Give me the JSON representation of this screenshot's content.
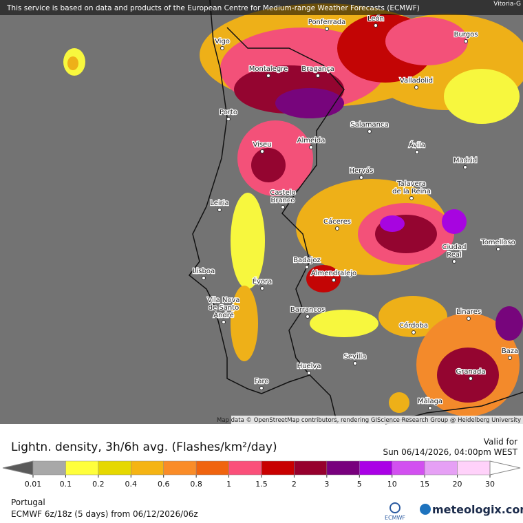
{
  "header": {
    "notice": "This service is based on data and products of the European Centre for Medium-range Weather Forecasts (ECMWF)",
    "corner": "Vitoria-G"
  },
  "map": {
    "attribution": "Map data © OpenStreetMap contributors, rendering GIScience Research Group @ Heidelberg University",
    "cities": [
      {
        "lines": [
          "Ponferrada"
        ]
      },
      {
        "lines": [
          "León"
        ]
      },
      {
        "lines": [
          "Vigo"
        ]
      },
      {
        "lines": [
          "Burgos"
        ]
      },
      {
        "lines": [
          "Montalegre"
        ]
      },
      {
        "lines": [
          "Bragança"
        ]
      },
      {
        "lines": [
          "Valladolid"
        ]
      },
      {
        "lines": [
          "Porto"
        ]
      },
      {
        "lines": [
          "Salamanca"
        ]
      },
      {
        "lines": [
          "Viseu"
        ]
      },
      {
        "lines": [
          "Almeida"
        ]
      },
      {
        "lines": [
          "Ávila"
        ]
      },
      {
        "lines": [
          "Madrid"
        ]
      },
      {
        "lines": [
          "Hervás"
        ]
      },
      {
        "lines": [
          "Talavera",
          "de la Reina"
        ]
      },
      {
        "lines": [
          "Castelo",
          "Branco"
        ]
      },
      {
        "lines": [
          "Leiria"
        ]
      },
      {
        "lines": [
          "Cáceres"
        ]
      },
      {
        "lines": [
          "Ciudad",
          "Real"
        ]
      },
      {
        "lines": [
          "Tomelloso"
        ]
      },
      {
        "lines": [
          "Badajoz"
        ]
      },
      {
        "lines": [
          "Lisboa"
        ]
      },
      {
        "lines": [
          "Almendralejo"
        ]
      },
      {
        "lines": [
          "Évora"
        ]
      },
      {
        "lines": [
          "Vila Nova",
          "de Santo",
          "André"
        ]
      },
      {
        "lines": [
          "Barrancos"
        ]
      },
      {
        "lines": [
          "Linares"
        ]
      },
      {
        "lines": [
          "Córdoba"
        ]
      },
      {
        "lines": [
          "Sevilla"
        ]
      },
      {
        "lines": [
          "Baza"
        ]
      },
      {
        "lines": [
          "Huelva"
        ]
      },
      {
        "lines": [
          "Granada"
        ]
      },
      {
        "lines": [
          "Faro"
        ]
      },
      {
        "lines": [
          "Málaga"
        ]
      }
    ]
  },
  "legend": {
    "title": "Lightn. density, 3h/6h avg. (Flashes/km²/day)",
    "valid_label": "Valid for",
    "valid_time": "Sun 06/14/2026, 04:00pm WEST",
    "ticks": [
      0.01,
      0.1,
      0.2,
      0.4,
      0.6,
      0.8,
      1,
      1.5,
      2,
      3,
      5,
      10,
      15,
      20,
      30
    ],
    "colors": [
      "#5a5a5a",
      "#a8a8a8",
      "#ffff3c",
      "#e6d800",
      "#f5b414",
      "#fa8c28",
      "#f0640f",
      "#fa507a",
      "#c80000",
      "#96002d",
      "#78007d",
      "#aa00e6",
      "#d250f0",
      "#e6a0f5",
      "#ffd2fa",
      "#ffffff"
    ]
  },
  "footer": {
    "region": "Portugal",
    "model": "ECMWF 6z/18z (5 days) from 06/12/2026/06z",
    "logo_small": "ECMWF",
    "logo": "meteologix.com"
  }
}
